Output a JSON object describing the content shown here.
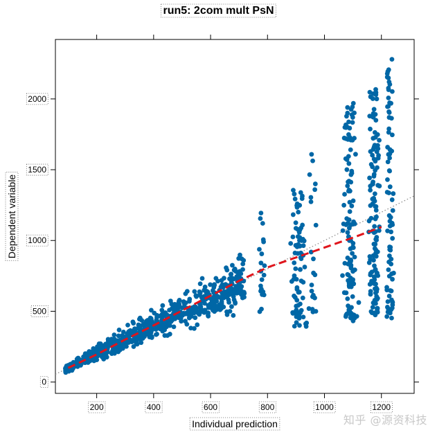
{
  "watermark": "知乎 @源资科技",
  "chart_data": {
    "type": "scatter",
    "title": "run5: 2com mult PsN",
    "xlabel": "Individual prediction",
    "ylabel": "Dependent variable",
    "xlim": [
      55,
      1315
    ],
    "ylim": [
      -80,
      2420
    ],
    "xticks": [
      200,
      400,
      600,
      800,
      1000,
      1200
    ],
    "yticks": [
      0,
      500,
      1000,
      1500,
      2000
    ],
    "grid": false,
    "point_color": "#0067a6",
    "identity_line": {
      "color": "#8c8c8c",
      "style": "dotted",
      "from": [
        0,
        0
      ],
      "to": [
        1315,
        1315
      ]
    },
    "smooth_line": {
      "color": "#e0151c",
      "style": "dashed",
      "x": [
        100,
        200,
        300,
        400,
        500,
        600,
        700,
        800,
        900,
        1000,
        1100,
        1200
      ],
      "y": [
        100,
        195,
        300,
        400,
        505,
        610,
        715,
        810,
        880,
        950,
        1020,
        1095
      ]
    },
    "clusters": [
      {
        "x": [
          90,
          720
        ],
        "spread": 0.2,
        "n": 700
      },
      {
        "x_center": 780,
        "x_sd": 8,
        "y_range": [
          480,
          1250
        ],
        "n": 20
      },
      {
        "x_center": 910,
        "x_sd": 20,
        "y_range": [
          390,
          1360
        ],
        "n": 80
      },
      {
        "x_center": 960,
        "x_sd": 8,
        "y_range": [
          490,
          1620
        ],
        "n": 20
      },
      {
        "x_center": 1090,
        "x_sd": 18,
        "y_range": [
          430,
          1970
        ],
        "n": 120
      },
      {
        "x_center": 1175,
        "x_sd": 16,
        "y_range": [
          470,
          2070
        ],
        "n": 130
      },
      {
        "x_center": 1230,
        "x_sd": 10,
        "y_range": [
          450,
          2290
        ],
        "n": 80
      }
    ]
  }
}
